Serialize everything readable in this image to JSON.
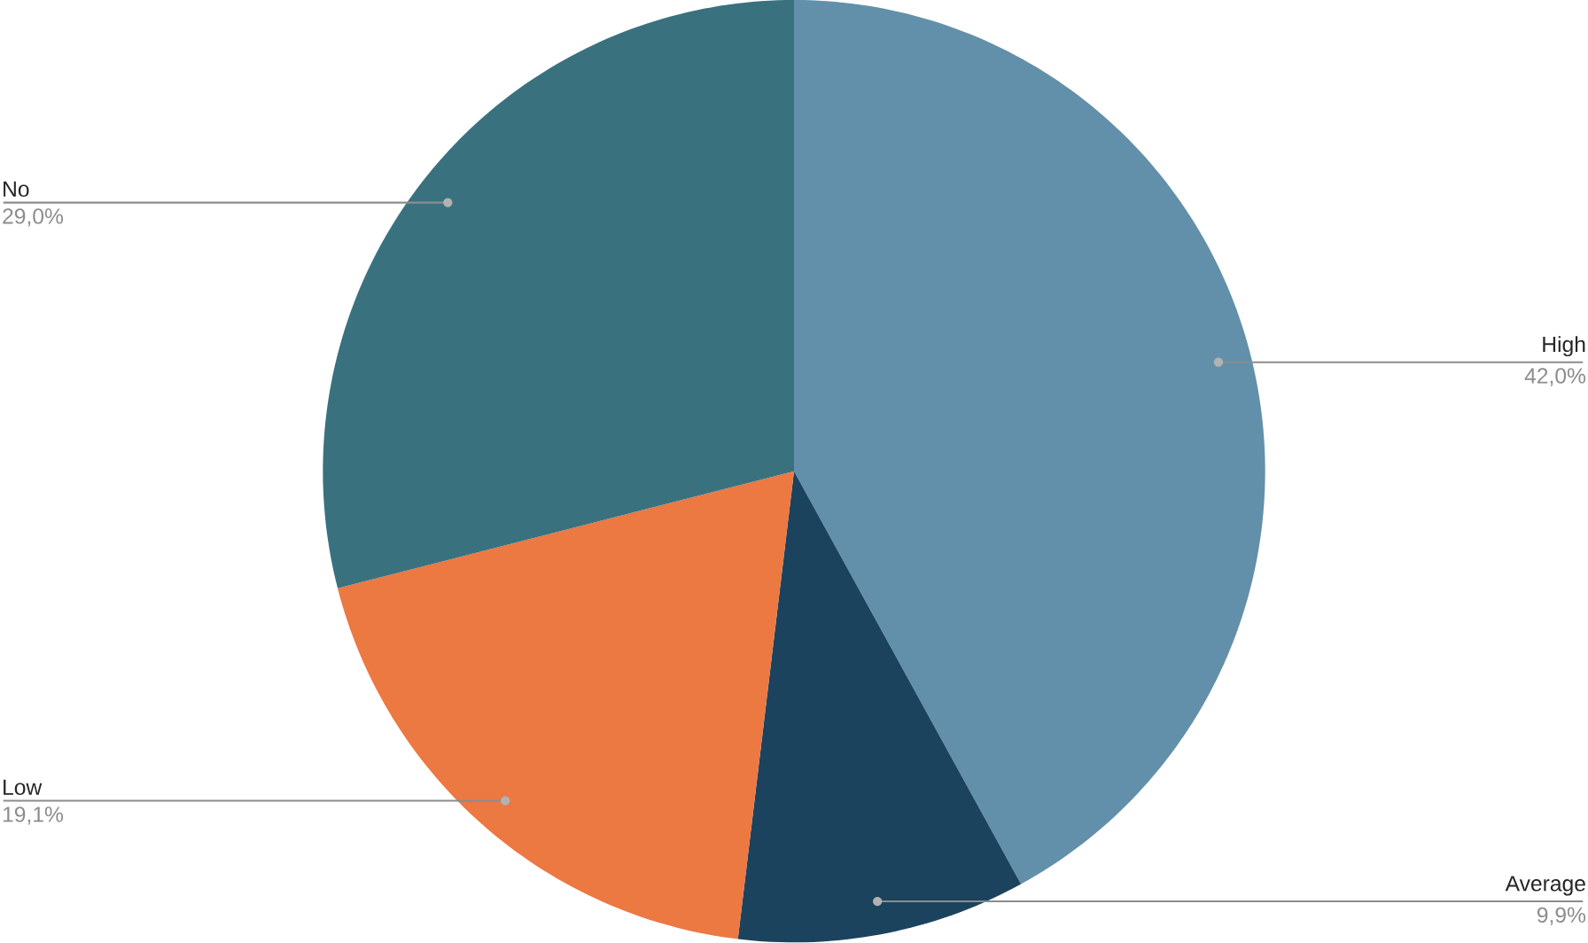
{
  "chart_data": {
    "type": "pie",
    "categories": [
      "High",
      "Average",
      "Low",
      "No"
    ],
    "values": [
      42.0,
      9.9,
      19.1,
      29.0
    ],
    "value_labels": [
      "42,0%",
      "9,9%",
      "19,1%",
      "29,0%"
    ],
    "colors": [
      "#6290aa",
      "#1c435e",
      "#ec7842",
      "#3a717f"
    ]
  }
}
